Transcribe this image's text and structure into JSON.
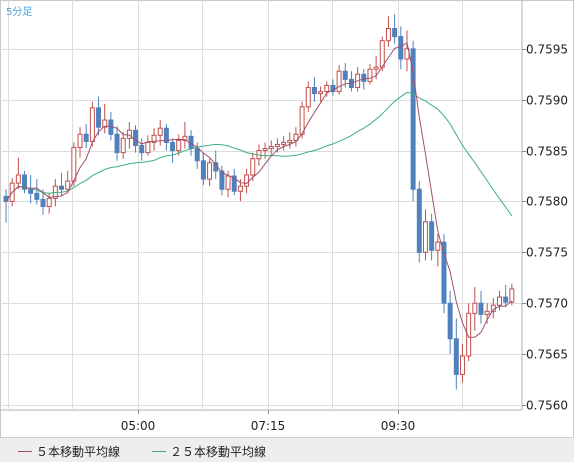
{
  "timeframe_label": "5分足",
  "chart_data": {
    "type": "candlestick",
    "title": "",
    "x_tick_labels": [
      "05:00",
      "07:15",
      "09:30"
    ],
    "y_ticks": [
      "0.7595",
      "0.7590",
      "0.7585",
      "0.7580",
      "0.7575",
      "0.7570",
      "0.7565",
      "0.7560"
    ],
    "ylim": [
      0.75595,
      0.75998
    ],
    "grid": true,
    "legend_position": "bottom-left",
    "colors": {
      "up": "#c0504d",
      "down": "#4f81bd",
      "ma5": "#a0506c",
      "ma25": "#3fae82",
      "grid": "#dddddd"
    },
    "series": [
      {
        "name": "５本移動平均線",
        "color": "#a0506c"
      },
      {
        "name": "２５本移動平均線",
        "color": "#3fae82"
      }
    ],
    "candles": [
      [
        0.75805,
        0.75812,
        0.75779,
        0.758
      ],
      [
        0.758,
        0.75823,
        0.75795,
        0.75818
      ],
      [
        0.75818,
        0.75843,
        0.75812,
        0.75826
      ],
      [
        0.75826,
        0.7583,
        0.75808,
        0.75812
      ],
      [
        0.75812,
        0.75826,
        0.75798,
        0.75808
      ],
      [
        0.75808,
        0.75822,
        0.75797,
        0.75802
      ],
      [
        0.75802,
        0.75812,
        0.75787,
        0.75795
      ],
      [
        0.75795,
        0.75808,
        0.75788,
        0.75803
      ],
      [
        0.75803,
        0.75822,
        0.75795,
        0.75815
      ],
      [
        0.75815,
        0.75828,
        0.75806,
        0.75812
      ],
      [
        0.75812,
        0.7583,
        0.75808,
        0.7582
      ],
      [
        0.7582,
        0.75858,
        0.75815,
        0.75853
      ],
      [
        0.75853,
        0.75873,
        0.75843,
        0.75866
      ],
      [
        0.75866,
        0.75876,
        0.75852,
        0.75859
      ],
      [
        0.75859,
        0.75898,
        0.75854,
        0.75892
      ],
      [
        0.75892,
        0.75903,
        0.75865,
        0.75873
      ],
      [
        0.75873,
        0.75896,
        0.75867,
        0.7588
      ],
      [
        0.7588,
        0.75888,
        0.7586,
        0.75866
      ],
      [
        0.75866,
        0.75874,
        0.7584,
        0.75848
      ],
      [
        0.75848,
        0.75868,
        0.75842,
        0.75862
      ],
      [
        0.75862,
        0.75878,
        0.75852,
        0.7587
      ],
      [
        0.7587,
        0.75875,
        0.75848,
        0.75855
      ],
      [
        0.75855,
        0.75862,
        0.7584,
        0.75848
      ],
      [
        0.75848,
        0.75865,
        0.75845,
        0.75858
      ],
      [
        0.75858,
        0.75872,
        0.7585,
        0.75865
      ],
      [
        0.75865,
        0.7588,
        0.75855,
        0.75872
      ],
      [
        0.75872,
        0.75876,
        0.7585,
        0.75858
      ],
      [
        0.75858,
        0.75862,
        0.75838,
        0.7585
      ],
      [
        0.7585,
        0.75866,
        0.75845,
        0.7586
      ],
      [
        0.7586,
        0.75878,
        0.75852,
        0.75864
      ],
      [
        0.75864,
        0.7587,
        0.75845,
        0.75852
      ],
      [
        0.75852,
        0.75858,
        0.75832,
        0.7584
      ],
      [
        0.7584,
        0.75848,
        0.75816,
        0.75822
      ],
      [
        0.75822,
        0.75842,
        0.75815,
        0.75838
      ],
      [
        0.75838,
        0.7585,
        0.75822,
        0.7583
      ],
      [
        0.7583,
        0.75835,
        0.75806,
        0.75812
      ],
      [
        0.75812,
        0.7583,
        0.75804,
        0.75825
      ],
      [
        0.75825,
        0.75832,
        0.75806,
        0.7581
      ],
      [
        0.7581,
        0.75822,
        0.758,
        0.75815
      ],
      [
        0.75815,
        0.75832,
        0.75808,
        0.75826
      ],
      [
        0.75826,
        0.75848,
        0.7582,
        0.75842
      ],
      [
        0.75842,
        0.75856,
        0.75835,
        0.7585
      ],
      [
        0.7585,
        0.75858,
        0.75842,
        0.75852
      ],
      [
        0.75852,
        0.7586,
        0.75846,
        0.75854
      ],
      [
        0.75854,
        0.75862,
        0.75848,
        0.75856
      ],
      [
        0.75856,
        0.75864,
        0.7585,
        0.75858
      ],
      [
        0.75858,
        0.75868,
        0.75852,
        0.7586
      ],
      [
        0.7586,
        0.75873,
        0.75854,
        0.75866
      ],
      [
        0.75866,
        0.75898,
        0.75862,
        0.75893
      ],
      [
        0.75893,
        0.75918,
        0.75888,
        0.75912
      ],
      [
        0.75912,
        0.75922,
        0.75898,
        0.75906
      ],
      [
        0.75906,
        0.75913,
        0.75898,
        0.75908
      ],
      [
        0.75908,
        0.75918,
        0.75903,
        0.75914
      ],
      [
        0.75914,
        0.7592,
        0.75904,
        0.75908
      ],
      [
        0.75908,
        0.75934,
        0.75905,
        0.75928
      ],
      [
        0.75928,
        0.75936,
        0.75912,
        0.7592
      ],
      [
        0.7592,
        0.75928,
        0.75908,
        0.75912
      ],
      [
        0.75912,
        0.75932,
        0.75908,
        0.75925
      ],
      [
        0.75925,
        0.7593,
        0.7591,
        0.75918
      ],
      [
        0.75918,
        0.75935,
        0.75915,
        0.7593
      ],
      [
        0.7593,
        0.75943,
        0.7592,
        0.75932
      ],
      [
        0.75932,
        0.75962,
        0.75928,
        0.75958
      ],
      [
        0.75958,
        0.75982,
        0.75952,
        0.7597
      ],
      [
        0.7597,
        0.75984,
        0.75955,
        0.75962
      ],
      [
        0.75962,
        0.75972,
        0.7593,
        0.7594
      ],
      [
        0.7594,
        0.75968,
        0.75928,
        0.7595
      ],
      [
        0.7595,
        0.75958,
        0.758,
        0.75812
      ],
      [
        0.75812,
        0.7582,
        0.7574,
        0.7575
      ],
      [
        0.7575,
        0.75792,
        0.75742,
        0.7578
      ],
      [
        0.7578,
        0.75788,
        0.75742,
        0.75752
      ],
      [
        0.75752,
        0.75768,
        0.75736,
        0.7576
      ],
      [
        0.7576,
        0.75768,
        0.7569,
        0.757
      ],
      [
        0.757,
        0.75712,
        0.7565,
        0.75665
      ],
      [
        0.75665,
        0.75685,
        0.75615,
        0.7563
      ],
      [
        0.7563,
        0.7566,
        0.75622,
        0.75648
      ],
      [
        0.75648,
        0.757,
        0.75643,
        0.7569
      ],
      [
        0.7569,
        0.75716,
        0.75673,
        0.757
      ],
      [
        0.757,
        0.75712,
        0.7568,
        0.75689
      ],
      [
        0.75689,
        0.757,
        0.7568,
        0.75692
      ],
      [
        0.75692,
        0.75705,
        0.75685,
        0.75698
      ],
      [
        0.75698,
        0.75712,
        0.75693,
        0.75706
      ],
      [
        0.75706,
        0.75718,
        0.75696,
        0.75701
      ],
      [
        0.75701,
        0.75719,
        0.75698,
        0.75714
      ]
    ]
  }
}
